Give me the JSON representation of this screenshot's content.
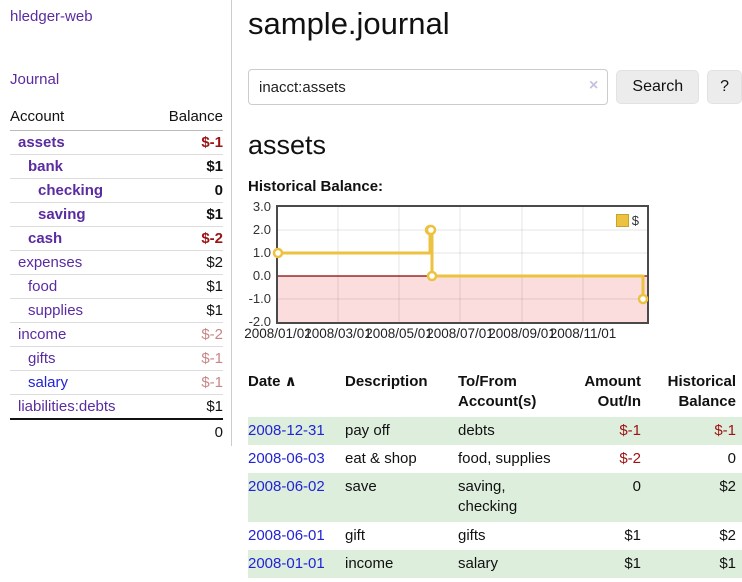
{
  "colors": {
    "link_purple": "#5a2ca0",
    "link_blue": "#2323d6",
    "negative_red": "#9d1212",
    "faded_negative_red": "#c98585",
    "row_green": "#ddeedd",
    "chart_line_gold": "#edc240",
    "chart_negative_pink": "#fbdddd",
    "chart_zero_line": "#8b0000"
  },
  "sidebar": {
    "brand": "hledger-web",
    "nav": [
      {
        "label": "Journal"
      }
    ],
    "table": {
      "account_header": "Account",
      "balance_header": "Balance"
    },
    "accounts": [
      {
        "name": "assets",
        "balance": "$-1",
        "indent": 1,
        "bold": true,
        "balance_color": "negative"
      },
      {
        "name": "bank",
        "balance": "$1",
        "indent": 2,
        "bold": true,
        "balance_color": "normal"
      },
      {
        "name": "checking",
        "balance": "0",
        "indent": 3,
        "bold": true,
        "balance_color": "normal"
      },
      {
        "name": "saving",
        "balance": "$1",
        "indent": 3,
        "bold": true,
        "balance_color": "normal"
      },
      {
        "name": "cash",
        "balance": "$-2",
        "indent": 2,
        "bold": true,
        "balance_color": "negative"
      },
      {
        "name": "expenses",
        "balance": "$2",
        "indent": 1,
        "bold": false,
        "balance_color": "normal"
      },
      {
        "name": "food",
        "balance": "$1",
        "indent": 2,
        "bold": false,
        "balance_color": "normal"
      },
      {
        "name": "supplies",
        "balance": "$1",
        "indent": 2,
        "bold": false,
        "balance_color": "normal"
      },
      {
        "name": "income",
        "balance": "$-2",
        "indent": 1,
        "bold": false,
        "balance_color": "faded"
      },
      {
        "name": "gifts",
        "balance": "$-1",
        "indent": 2,
        "bold": false,
        "balance_color": "faded"
      },
      {
        "name": "salary",
        "balance": "$-1",
        "indent": 2,
        "bold": false,
        "balance_color": "faded",
        "link_color": "blue"
      },
      {
        "name": "liabilities:debts",
        "balance": "$1",
        "indent": 1,
        "bold": false,
        "balance_color": "normal"
      }
    ],
    "total": "0"
  },
  "main": {
    "title": "sample.journal",
    "search": {
      "value": "inacct:assets",
      "clear_icon": "×",
      "search_button": "Search",
      "help_button": "?"
    },
    "account_heading": "assets",
    "chart_label": "Historical Balance:"
  },
  "chart_data": {
    "type": "line",
    "title": "Historical Balance",
    "series": [
      {
        "name": "$",
        "color": "#edc240",
        "step": true,
        "points": [
          [
            "2008-01-01",
            1
          ],
          [
            "2008-06-01",
            2
          ],
          [
            "2008-06-02",
            2
          ],
          [
            "2008-06-03",
            0
          ],
          [
            "2008-12-31",
            -1
          ]
        ]
      }
    ],
    "ylim": [
      -2,
      3
    ],
    "yticks": [
      "3.0",
      "2.0",
      "1.0",
      "0.0",
      "-1.0",
      "-2.0"
    ],
    "xticks": [
      "2008/01/01",
      "2008/03/01",
      "2008/05/01",
      "2008/07/01",
      "2008/09/01",
      "2008/11/01"
    ],
    "x_start": "2008-01-01",
    "x_end": "2008-12-31",
    "grid": true,
    "legend_position": "top-right",
    "negative_fill": "#fbdddd",
    "zero_line_color": "#8b0000"
  },
  "register": {
    "sort_indicator": "∧",
    "headers": [
      {
        "key": "date",
        "lines": [
          "Date"
        ],
        "sortable": true
      },
      {
        "key": "description",
        "lines": [
          "Description"
        ],
        "sortable": false
      },
      {
        "key": "accounts",
        "lines": [
          "To/From",
          "Account(s)"
        ],
        "sortable": false
      },
      {
        "key": "amount",
        "lines": [
          "Amount",
          "Out/In"
        ],
        "align": "right",
        "sortable": false
      },
      {
        "key": "balance",
        "lines": [
          "Historical",
          "Balance"
        ],
        "align": "right",
        "sortable": false
      }
    ],
    "rows": [
      {
        "date": "2008-12-31",
        "description": "pay off",
        "accounts": "debts",
        "amount": "$-1",
        "amount_neg": true,
        "balance": "$-1",
        "balance_neg": true
      },
      {
        "date": "2008-06-03",
        "description": "eat & shop",
        "accounts": "food, supplies",
        "amount": "$-2",
        "amount_neg": true,
        "balance": "0",
        "balance_neg": false
      },
      {
        "date": "2008-06-02",
        "description": "save",
        "accounts": "saving, checking",
        "amount": "0",
        "amount_neg": false,
        "balance": "$2",
        "balance_neg": false
      },
      {
        "date": "2008-06-01",
        "description": "gift",
        "accounts": "gifts",
        "amount": "$1",
        "amount_neg": false,
        "balance": "$2",
        "balance_neg": false
      },
      {
        "date": "2008-01-01",
        "description": "income",
        "accounts": "salary",
        "amount": "$1",
        "amount_neg": false,
        "balance": "$1",
        "balance_neg": false
      }
    ]
  }
}
